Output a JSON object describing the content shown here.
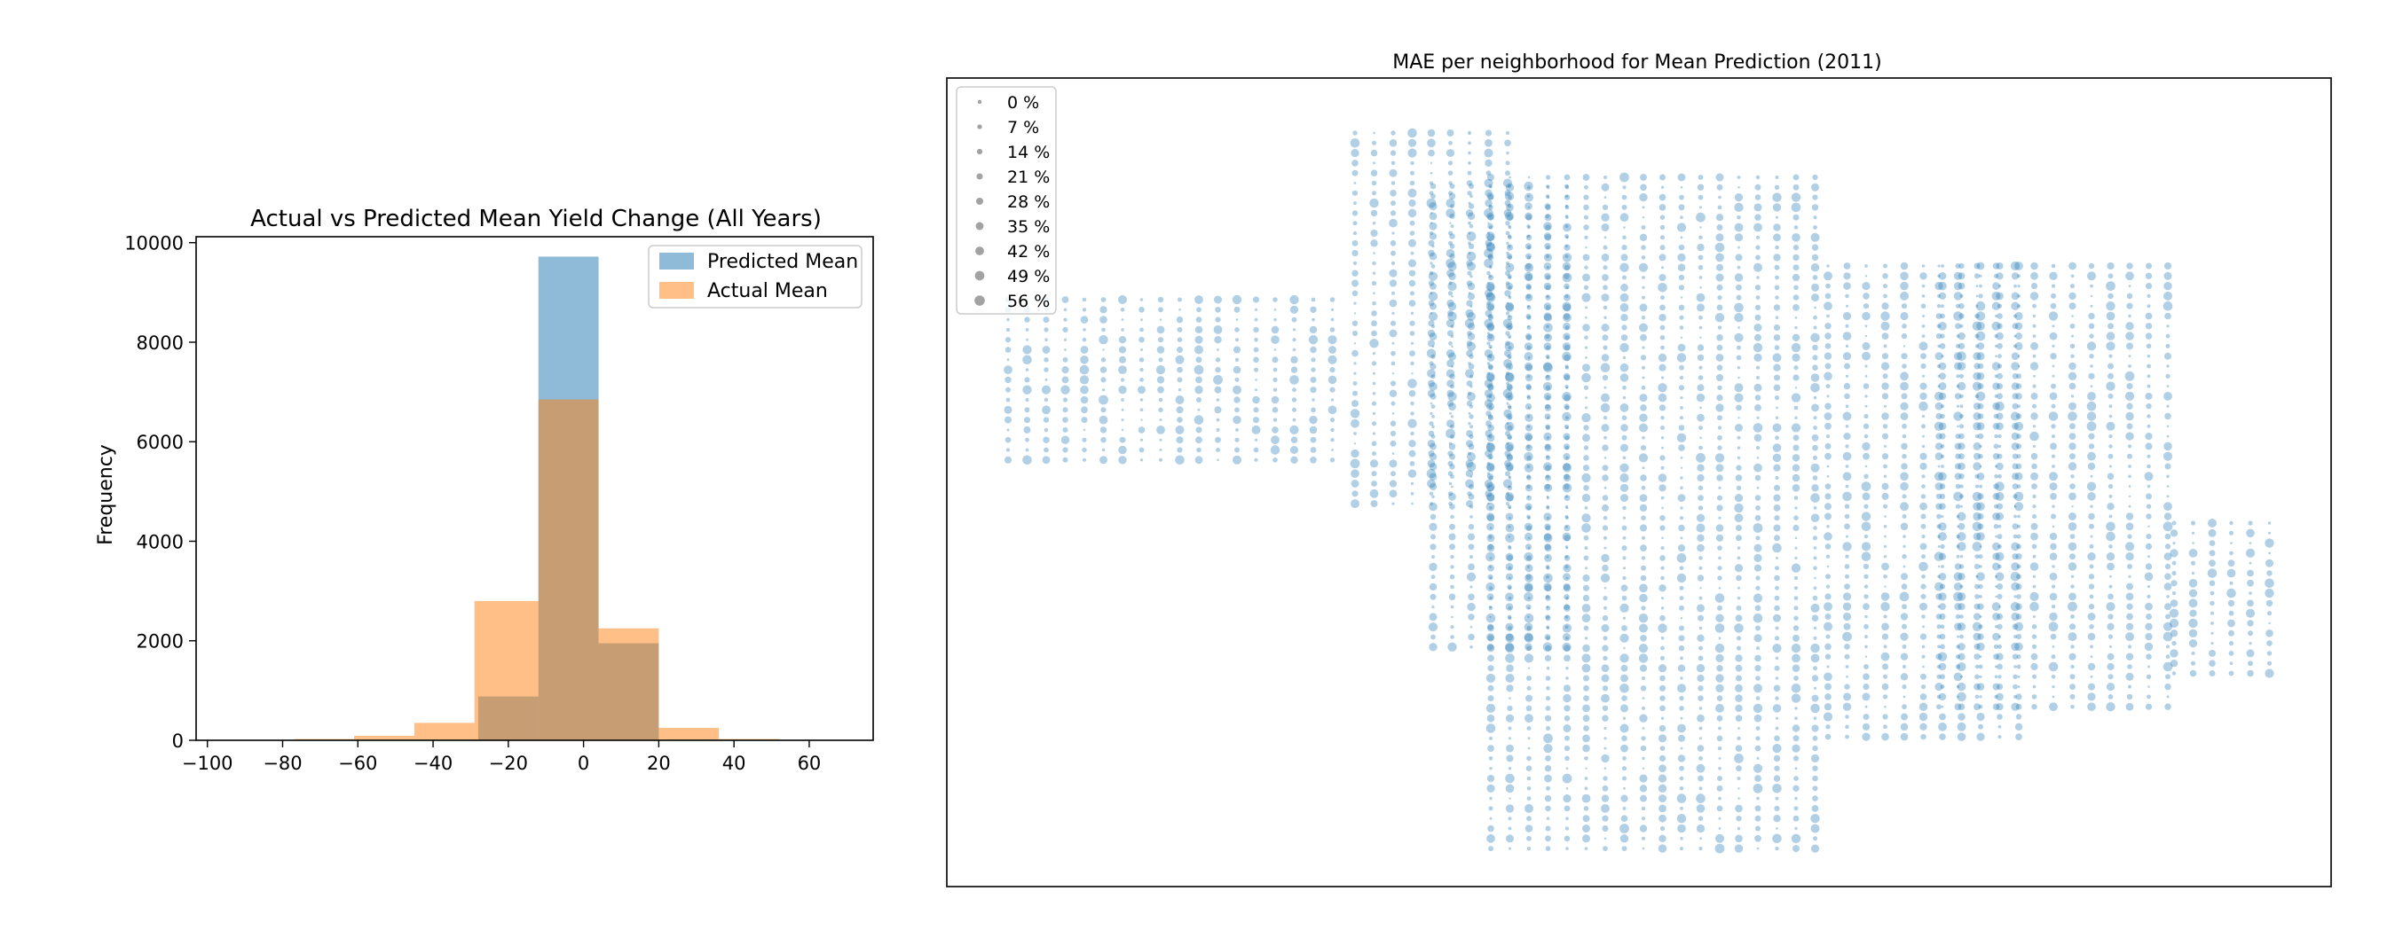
{
  "chart_data": [
    {
      "type": "histogram",
      "title": "Actual vs Predicted Mean Yield Change (All Years)",
      "xlabel": "",
      "ylabel": "Frequency",
      "xlim": [
        -103,
        77
      ],
      "ylim": [
        0,
        10120
      ],
      "xticks": [
        -100,
        -80,
        -60,
        -40,
        -20,
        0,
        20,
        40,
        60
      ],
      "yticks": [
        0,
        2000,
        4000,
        6000,
        8000,
        10000
      ],
      "grid": false,
      "legend_position": "top-right",
      "series": [
        {
          "name": "Predicted Mean",
          "color": "#1f77b4",
          "opacity": 0.5,
          "bins": [
            {
              "x0": -28,
              "x1": -12,
              "count": 880
            },
            {
              "x0": -12,
              "x1": 4,
              "count": 9720
            },
            {
              "x0": 4,
              "x1": 20,
              "count": 1950
            }
          ]
        },
        {
          "name": "Actual Mean",
          "color": "#ff7f0e",
          "opacity": 0.5,
          "bins": [
            {
              "x0": -77,
              "x1": -61,
              "count": 25
            },
            {
              "x0": -61,
              "x1": -45,
              "count": 90
            },
            {
              "x0": -45,
              "x1": -29,
              "count": 350
            },
            {
              "x0": -29,
              "x1": -12,
              "count": 2800
            },
            {
              "x0": -12,
              "x1": 4,
              "count": 6850
            },
            {
              "x0": 4,
              "x1": 20,
              "count": 2250
            },
            {
              "x0": 20,
              "x1": 36,
              "count": 250
            },
            {
              "x0": 36,
              "x1": 52,
              "count": 25
            }
          ]
        }
      ]
    },
    {
      "type": "scatter",
      "title": "MAE per neighborhood for Mean Prediction (2011)",
      "xlabel": "",
      "ylabel": "",
      "axis_ticks": false,
      "marker_color": "#1f77b4",
      "marker_opacity": 0.35,
      "size_encoding": "MAE percent",
      "legend_position": "top-left",
      "legend_labels": [
        "0 %",
        "7 %",
        "14 %",
        "21 %",
        "28 %",
        "35 %",
        "42 %",
        "49 %",
        "56 %"
      ]
    }
  ]
}
